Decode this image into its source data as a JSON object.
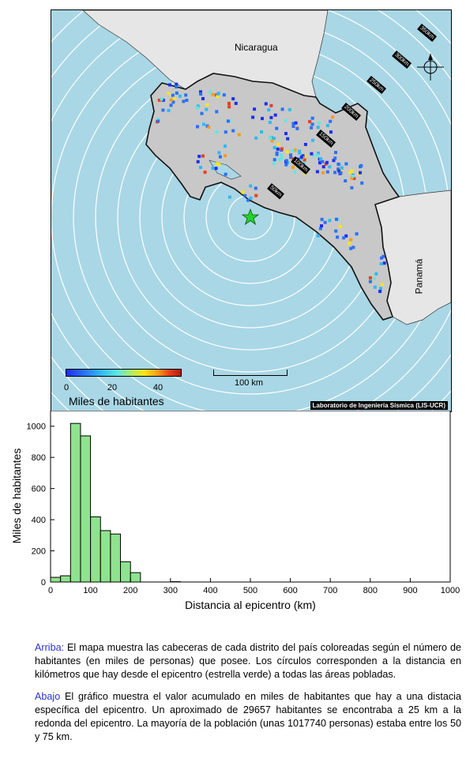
{
  "map": {
    "countries": {
      "north": "Nicaragua",
      "east": "Panamá"
    },
    "ring_labels": [
      "50km",
      "100km",
      "150km",
      "200km",
      "250km",
      "300km",
      "350km"
    ],
    "colorbar": {
      "ticks": [
        "0",
        "20",
        "40"
      ],
      "label": "Miles de habitantes"
    },
    "scalebar_label": "100 km",
    "credit": "Laboratorio de Ingeniería Sísmica (LIS-UCR)",
    "colors": {
      "sea": "#a9d7e6",
      "land_cr": "#c8c8c8",
      "land_other": "#e6e6e6",
      "epicenter": "#22d42a"
    }
  },
  "chart_data": {
    "type": "bar",
    "xlabel": "Distancia al epicentro (km)",
    "ylabel": "Miles de habitantes",
    "xlim": [
      0,
      1000
    ],
    "ylim": [
      0,
      1100
    ],
    "x_ticks": [
      0,
      100,
      200,
      300,
      400,
      500,
      600,
      700,
      800,
      900,
      1000
    ],
    "y_ticks": [
      0,
      200,
      400,
      600,
      800,
      1000
    ],
    "bin_width": 25,
    "bins": [
      {
        "start": 0,
        "value": 30
      },
      {
        "start": 25,
        "value": 40
      },
      {
        "start": 50,
        "value": 1018
      },
      {
        "start": 75,
        "value": 938
      },
      {
        "start": 100,
        "value": 418
      },
      {
        "start": 125,
        "value": 330
      },
      {
        "start": 150,
        "value": 308
      },
      {
        "start": 175,
        "value": 130
      },
      {
        "start": 200,
        "value": 60
      },
      {
        "start": 300,
        "value": 2
      }
    ],
    "bar_color": "#8fe38f"
  },
  "caption": {
    "p1_head": "Arriba:",
    "p1_text": " El mapa muestra las cabeceras de cada distrito del país coloreadas según el número de habitantes (en miles de personas) que posee.  Los círculos corresponden a la distancia en kilómetros que hay desde el epicentro (estrella verde) a todas las áreas pobladas.",
    "p2_head": "Abajo",
    "p2_text": " El gráfico muestra el valor acumulado en miles de habitantes que hay a una distacia específica del epicentro.  Un aproximado de 29657 habitantes se encontraba a 25 km a la redonda del epicentro.  La mayoría de la población (unas 1017740 personas) estaba entre los 50 y 75 km."
  }
}
